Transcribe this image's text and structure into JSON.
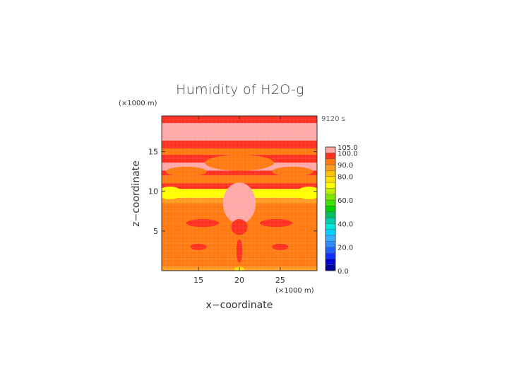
{
  "chart_data": {
    "type": "heatmap",
    "title": "Humidity of H2O-g",
    "time_label": "9120 s",
    "xlabel": "x−coordinate",
    "ylabel": "z−coordinate",
    "x_unit": "(×1000 m)",
    "z_unit": "(×1000 m)",
    "xlim": [
      10.5,
      29.5
    ],
    "zlim": [
      0,
      19.5
    ],
    "x_ticks": [
      15,
      20,
      25
    ],
    "z_ticks": [
      5,
      10,
      15
    ],
    "colorbar": {
      "levels": [
        0,
        5,
        10,
        15,
        20,
        25,
        30,
        35,
        40,
        45,
        50,
        55,
        60,
        65,
        70,
        75,
        80,
        85,
        90,
        95,
        100,
        105
      ],
      "colors": [
        "#00009c",
        "#0000d0",
        "#1030ff",
        "#2060ff",
        "#2e8cff",
        "#33b0ff",
        "#00d0ff",
        "#00e6e0",
        "#00ccaa",
        "#00c060",
        "#00d000",
        "#40e000",
        "#80e800",
        "#c0f000",
        "#ffff00",
        "#ffe000",
        "#ffc000",
        "#ff9c20",
        "#ff7a10",
        "#ff3020",
        "#ffa8a8"
      ],
      "labels": [
        "0.0",
        "20.0",
        "40.0",
        "60.0",
        "80.0",
        "90.0",
        "100.0",
        "105.0"
      ],
      "label_values": [
        0,
        20,
        40,
        60,
        80,
        90,
        100,
        105
      ]
    },
    "bands": [
      {
        "z0": 0,
        "z1": 0.5,
        "value": 88
      },
      {
        "z0": 0.5,
        "z1": 1.5,
        "value": 92
      },
      {
        "z0": 1.5,
        "z1": 2.5,
        "value": 93
      },
      {
        "z0": 2.5,
        "z1": 3.5,
        "value": 94
      },
      {
        "z0": 3.5,
        "z1": 4.5,
        "value": 93
      },
      {
        "z0": 4.5,
        "z1": 6.0,
        "value": 92
      },
      {
        "z0": 6.0,
        "z1": 7.5,
        "value": 93
      },
      {
        "z0": 7.5,
        "z1": 8.5,
        "value": 91
      },
      {
        "z0": 8.5,
        "z1": 9.2,
        "value": 87
      },
      {
        "z0": 9.2,
        "z1": 10.3,
        "value": 72
      },
      {
        "z0": 10.3,
        "z1": 11.0,
        "value": 95
      },
      {
        "z0": 11.0,
        "z1": 12.0,
        "value": 92
      },
      {
        "z0": 12.0,
        "z1": 12.6,
        "value": 97
      },
      {
        "z0": 12.6,
        "z1": 13.6,
        "value": 101
      },
      {
        "z0": 13.6,
        "z1": 14.6,
        "value": 97
      },
      {
        "z0": 14.6,
        "z1": 15.4,
        "value": 92
      },
      {
        "z0": 15.4,
        "z1": 16.4,
        "value": 97
      },
      {
        "z0": 16.4,
        "z1": 18.6,
        "value": 101
      },
      {
        "z0": 18.6,
        "z1": 19.5,
        "value": 97
      }
    ],
    "patches": [
      {
        "cx": 20,
        "cz": 13.6,
        "rx": 4.2,
        "rz": 1.0,
        "value": 92
      },
      {
        "cx": 13.5,
        "cz": 12.5,
        "rx": 2.5,
        "rz": 0.6,
        "value": 92
      },
      {
        "cx": 26.5,
        "cz": 12.5,
        "rx": 2.5,
        "rz": 0.6,
        "value": 92
      },
      {
        "cx": 20,
        "cz": 8.5,
        "rx": 2.0,
        "rz": 2.6,
        "value": 101
      },
      {
        "cx": 20,
        "cz": 5.5,
        "rx": 1.0,
        "rz": 1.0,
        "value": 97
      },
      {
        "cx": 20,
        "cz": 2.5,
        "rx": 0.35,
        "rz": 1.5,
        "value": 97
      },
      {
        "cx": 11.5,
        "cz": 9.8,
        "rx": 1.5,
        "rz": 0.8,
        "value": 70
      },
      {
        "cx": 28.5,
        "cz": 9.8,
        "rx": 1.5,
        "rz": 0.8,
        "value": 70
      },
      {
        "cx": 15.5,
        "cz": 6.0,
        "rx": 2.0,
        "rz": 0.5,
        "value": 97
      },
      {
        "cx": 24.5,
        "cz": 6.0,
        "rx": 2.0,
        "rz": 0.5,
        "value": 97
      },
      {
        "cx": 15,
        "cz": 3.0,
        "rx": 1.0,
        "rz": 0.4,
        "value": 97
      },
      {
        "cx": 25,
        "cz": 3.0,
        "rx": 1.0,
        "rz": 0.4,
        "value": 97
      },
      {
        "cx": 20,
        "cz": 0.2,
        "rx": 0.6,
        "rz": 0.3,
        "value": 75
      }
    ]
  }
}
